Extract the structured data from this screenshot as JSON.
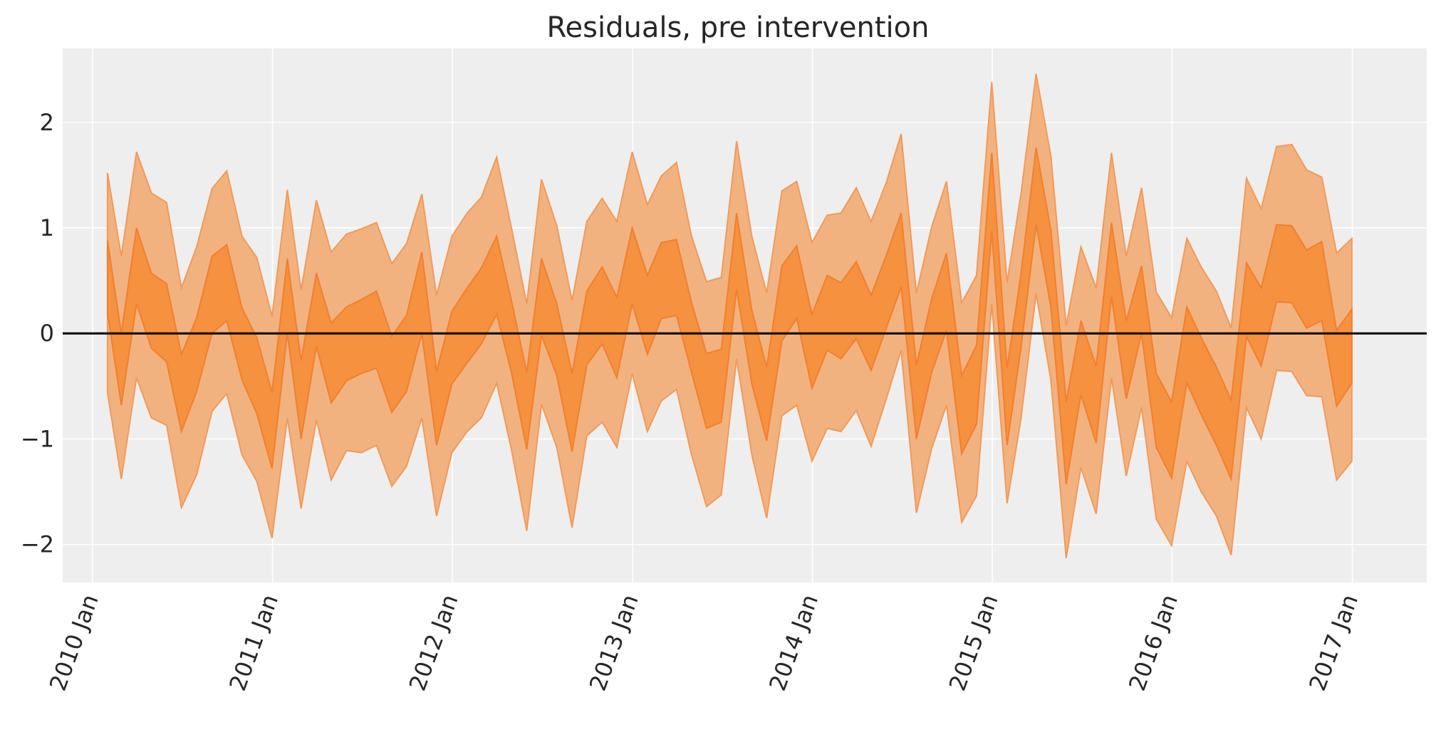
{
  "chart_data": {
    "type": "area",
    "title": "Residuals, pre intervention",
    "xlabel": "",
    "ylabel": "",
    "x_axis": {
      "type": "date",
      "range": [
        "2009-11-01",
        "2017-06-01"
      ],
      "ticks": [
        "2010-01-01",
        "2011-01-01",
        "2012-01-01",
        "2013-01-01",
        "2014-01-01",
        "2015-01-01",
        "2016-01-01",
        "2017-01-01"
      ],
      "tick_labels": [
        "2010 Jan",
        "2011 Jan",
        "2012 Jan",
        "2013 Jan",
        "2014 Jan",
        "2015 Jan",
        "2016 Jan",
        "2017 Jan"
      ]
    },
    "y_axis": {
      "range": [
        -2.36,
        2.7
      ],
      "ticks": [
        -2,
        -1,
        0,
        1,
        2
      ],
      "tick_labels": [
        "−2",
        "−1",
        "0",
        "1",
        "2"
      ]
    },
    "grid": true,
    "zero_line": 0,
    "colors": {
      "background": "#eeeeee",
      "outer_band": "#f2b280",
      "outer_edge": "#f09a5a",
      "inner_band": "#f5913f",
      "inner_edge": "#f08030",
      "zero_line": "#000000",
      "grid": "#ffffff"
    },
    "x": [
      "2010-01-31",
      "2010-02-28",
      "2010-03-31",
      "2010-04-30",
      "2010-05-31",
      "2010-06-30",
      "2010-07-31",
      "2010-08-31",
      "2010-09-30",
      "2010-10-31",
      "2010-11-30",
      "2010-12-31",
      "2011-01-31",
      "2011-02-28",
      "2011-03-31",
      "2011-04-30",
      "2011-05-31",
      "2011-06-30",
      "2011-07-31",
      "2011-08-31",
      "2011-09-30",
      "2011-10-31",
      "2011-11-30",
      "2011-12-31",
      "2012-01-31",
      "2012-02-29",
      "2012-03-31",
      "2012-04-30",
      "2012-05-31",
      "2012-06-30",
      "2012-07-31",
      "2012-08-31",
      "2012-09-30",
      "2012-10-31",
      "2012-11-30",
      "2012-12-31",
      "2013-01-31",
      "2013-02-28",
      "2013-03-31",
      "2013-04-30",
      "2013-05-31",
      "2013-06-30",
      "2013-07-31",
      "2013-08-31",
      "2013-09-30",
      "2013-10-31",
      "2013-11-30",
      "2013-12-31",
      "2014-01-31",
      "2014-02-28",
      "2014-03-31",
      "2014-04-30",
      "2014-05-31",
      "2014-06-30",
      "2014-07-31",
      "2014-08-31",
      "2014-09-30",
      "2014-10-31",
      "2014-11-30",
      "2014-12-31",
      "2015-01-31",
      "2015-02-28",
      "2015-03-31",
      "2015-04-30",
      "2015-05-31",
      "2015-06-30",
      "2015-07-31",
      "2015-08-31",
      "2015-09-30",
      "2015-10-31",
      "2015-11-30",
      "2015-12-31",
      "2016-01-31",
      "2016-02-29",
      "2016-03-31",
      "2016-04-30",
      "2016-05-31",
      "2016-06-30",
      "2016-07-31",
      "2016-08-31",
      "2016-09-30",
      "2016-10-31",
      "2016-11-30",
      "2016-12-31"
    ],
    "series": [
      {
        "lower": [
          -0.56,
          -1.38,
          -0.42,
          -0.8,
          -0.87,
          -1.65,
          -1.34,
          -0.74,
          -0.57,
          -1.15,
          -1.4,
          -1.94,
          -0.8,
          -1.66,
          -0.82,
          -1.39,
          -1.11,
          -1.13,
          -1.06,
          -1.45,
          -1.26,
          -0.8,
          -1.73,
          -1.13,
          -0.93,
          -0.8,
          -0.47,
          -1.1,
          -1.87,
          -0.67,
          -1.08,
          -1.84,
          -0.97,
          -0.84,
          -1.08,
          -0.38,
          -0.93,
          -0.64,
          -0.53,
          -1.14,
          -1.64,
          -1.53,
          -0.24,
          -1.15,
          -1.75,
          -0.78,
          -0.68,
          -1.21,
          -0.9,
          -0.93,
          -0.73,
          -1.07,
          -0.62,
          -0.16,
          -1.7,
          -1.09,
          -0.68,
          -1.79,
          -1.54,
          0.28,
          -1.61,
          -0.82,
          0.38,
          -0.44,
          -2.13,
          -1.27,
          -1.71,
          -0.42,
          -1.35,
          -0.7,
          -1.76,
          -2.01,
          -1.21,
          -1.5,
          -1.73,
          -2.1,
          -0.7,
          -1.0,
          -0.35,
          -0.36,
          -0.59,
          -0.6,
          -1.39,
          -1.21
        ],
        "upper": [
          1.52,
          0.73,
          1.72,
          1.33,
          1.24,
          0.43,
          0.82,
          1.37,
          1.54,
          0.92,
          0.72,
          0.16,
          1.36,
          0.41,
          1.26,
          0.77,
          0.94,
          0.99,
          1.05,
          0.66,
          0.85,
          1.32,
          0.36,
          0.92,
          1.14,
          1.29,
          1.67,
          1.0,
          0.28,
          1.46,
          1.02,
          0.31,
          1.06,
          1.28,
          1.06,
          1.72,
          1.22,
          1.49,
          1.62,
          0.93,
          0.49,
          0.53,
          1.82,
          0.92,
          0.38,
          1.35,
          1.44,
          0.86,
          1.12,
          1.14,
          1.38,
          1.06,
          1.43,
          1.89,
          0.38,
          1.01,
          1.44,
          0.29,
          0.55,
          2.38,
          0.48,
          1.31,
          2.46,
          1.68,
          0.07,
          0.82,
          0.43,
          1.71,
          0.73,
          1.38,
          0.39,
          0.15,
          0.9,
          0.63,
          0.4,
          0.05,
          1.47,
          1.18,
          1.77,
          1.79,
          1.55,
          1.48,
          0.76,
          0.9
        ]
      },
      {
        "lower": [
          0.2,
          -0.68,
          0.28,
          -0.14,
          -0.27,
          -0.93,
          -0.55,
          0.0,
          0.12,
          -0.44,
          -0.76,
          -1.28,
          0.0,
          -1.0,
          -0.12,
          -0.66,
          -0.45,
          -0.38,
          -0.33,
          -0.75,
          -0.55,
          0.0,
          -1.06,
          -0.48,
          -0.28,
          -0.1,
          0.18,
          -0.37,
          -1.1,
          -0.02,
          -0.4,
          -1.12,
          -0.3,
          -0.1,
          -0.42,
          0.28,
          -0.2,
          0.14,
          0.17,
          -0.36,
          -0.9,
          -0.84,
          0.42,
          -0.48,
          -1.02,
          -0.07,
          0.14,
          -0.52,
          -0.16,
          -0.24,
          -0.05,
          -0.35,
          0.05,
          0.44,
          -1.0,
          -0.37,
          0.03,
          -1.14,
          -0.86,
          0.97,
          -1.06,
          -0.15,
          1.03,
          0.25,
          -1.43,
          -0.58,
          -1.04,
          0.35,
          -0.62,
          0.0,
          -1.08,
          -1.37,
          -0.47,
          -0.77,
          -1.06,
          -1.38,
          -0.03,
          -0.31,
          0.3,
          0.29,
          0.05,
          0.12,
          -0.69,
          -0.47
        ],
        "upper": [
          0.88,
          0.0,
          1.0,
          0.57,
          0.47,
          -0.2,
          0.15,
          0.73,
          0.84,
          0.24,
          -0.04,
          -0.56,
          0.71,
          -0.26,
          0.57,
          0.1,
          0.25,
          0.32,
          0.4,
          -0.03,
          0.17,
          0.77,
          -0.36,
          0.21,
          0.43,
          0.62,
          0.92,
          0.31,
          -0.37,
          0.71,
          0.28,
          -0.38,
          0.4,
          0.63,
          0.34,
          1.0,
          0.55,
          0.86,
          0.89,
          0.3,
          -0.19,
          -0.15,
          1.14,
          0.22,
          -0.32,
          0.64,
          0.83,
          0.18,
          0.55,
          0.48,
          0.68,
          0.36,
          0.74,
          1.14,
          -0.3,
          0.33,
          0.76,
          -0.4,
          -0.11,
          1.71,
          -0.33,
          0.55,
          1.76,
          0.98,
          -0.65,
          0.12,
          -0.31,
          1.05,
          0.12,
          0.64,
          -0.38,
          -0.65,
          0.25,
          -0.04,
          -0.32,
          -0.63,
          0.67,
          0.43,
          1.03,
          1.02,
          0.79,
          0.87,
          0.03,
          0.23
        ]
      }
    ]
  }
}
